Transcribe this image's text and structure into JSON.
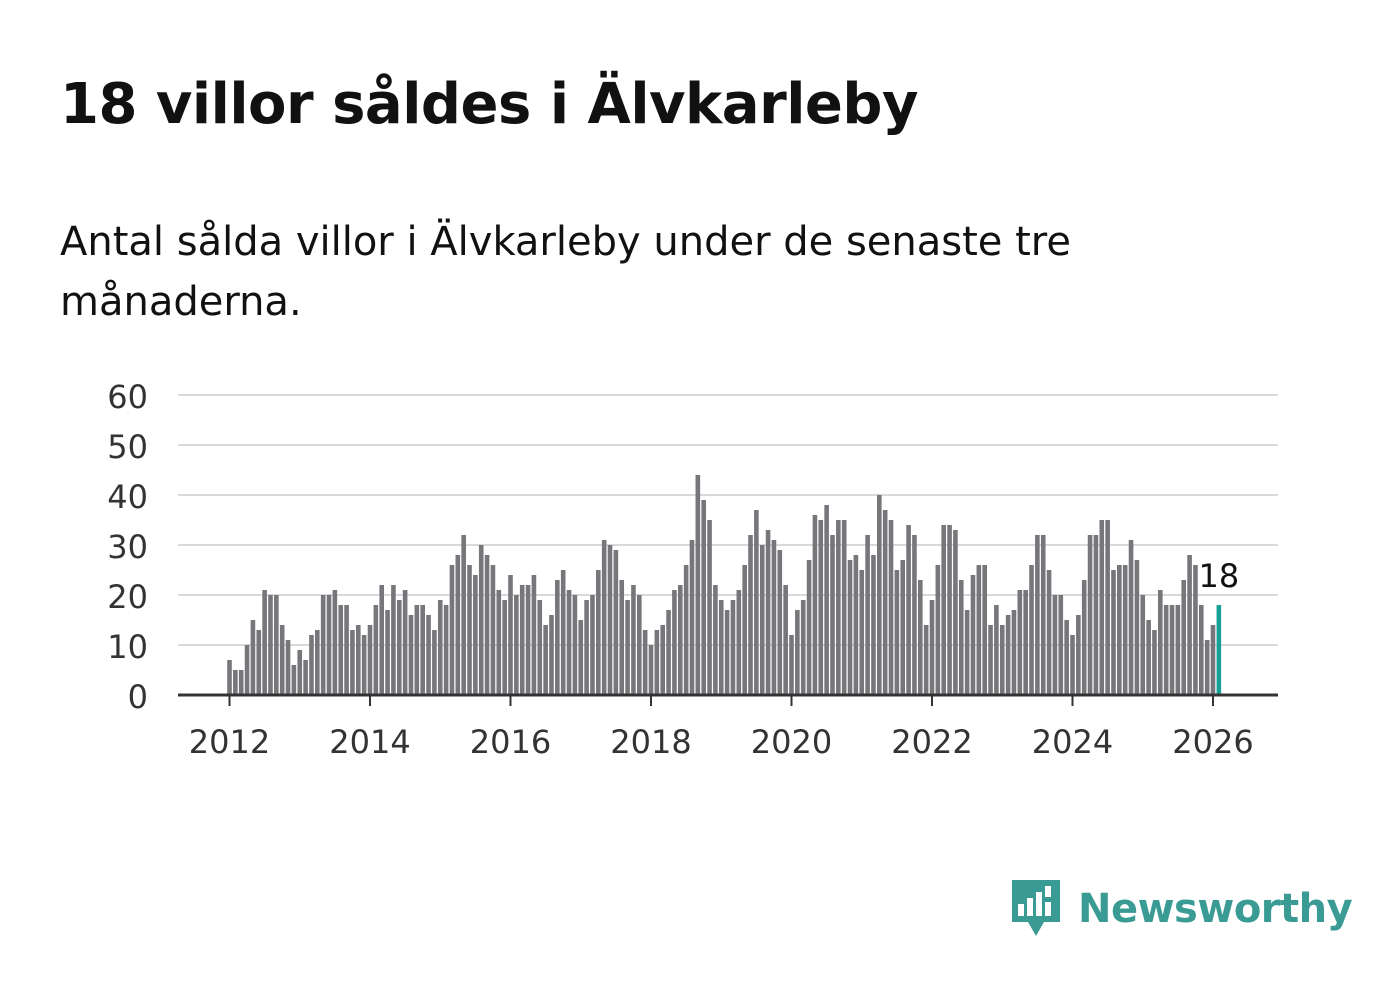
{
  "title": "18 villor såldes i Älvkarleby",
  "subtitle": "Antal sålda villor i Älvkarleby under de senaste tre månaderna.",
  "brand": {
    "name": "Newsworthy",
    "color": "#3a9b94",
    "icon": "newsworthy-logo-icon"
  },
  "colors": {
    "bar": "#77767a",
    "highlight": "#17a096",
    "grid": "#d9d9d9",
    "axis": "#333333"
  },
  "chart_data": {
    "type": "bar",
    "title": "18 villor såldes i Älvkarleby",
    "xlabel": "",
    "ylabel": "",
    "ylim": [
      0,
      60
    ],
    "yticks": [
      "0",
      "10",
      "20",
      "30",
      "40",
      "50",
      "60"
    ],
    "xticks": [
      "2012",
      "2014",
      "2016",
      "2018",
      "2020",
      "2022",
      "2024",
      "2026"
    ],
    "x_start": "2012-01",
    "x_end": "2026-03",
    "grid": true,
    "highlight_label": "18",
    "values": [
      7,
      5,
      5,
      10,
      15,
      13,
      21,
      20,
      20,
      14,
      11,
      6,
      9,
      7,
      12,
      13,
      20,
      20,
      21,
      18,
      18,
      13,
      14,
      12,
      14,
      18,
      22,
      17,
      22,
      19,
      21,
      16,
      18,
      18,
      16,
      13,
      19,
      18,
      26,
      28,
      32,
      26,
      24,
      30,
      28,
      26,
      21,
      19,
      24,
      20,
      22,
      22,
      24,
      19,
      14,
      16,
      23,
      25,
      21,
      20,
      15,
      19,
      20,
      25,
      31,
      30,
      29,
      23,
      19,
      22,
      20,
      13,
      10,
      13,
      14,
      17,
      21,
      22,
      26,
      31,
      44,
      39,
      35,
      22,
      19,
      17,
      19,
      21,
      26,
      32,
      37,
      30,
      33,
      31,
      29,
      22,
      12,
      17,
      19,
      27,
      36,
      35,
      38,
      32,
      35,
      35,
      27,
      28,
      25,
      32,
      28,
      40,
      37,
      35,
      25,
      27,
      34,
      32,
      23,
      14,
      19,
      26,
      34,
      34,
      33,
      23,
      17,
      24,
      26,
      26,
      14,
      18,
      14,
      16,
      17,
      21,
      21,
      26,
      32,
      32,
      25,
      20,
      20,
      15,
      12,
      16,
      23,
      32,
      32,
      35,
      35,
      25,
      26,
      26,
      31,
      27,
      20,
      15,
      13,
      21,
      18,
      18,
      18,
      23,
      28,
      26,
      18,
      11,
      14,
      18
    ]
  }
}
